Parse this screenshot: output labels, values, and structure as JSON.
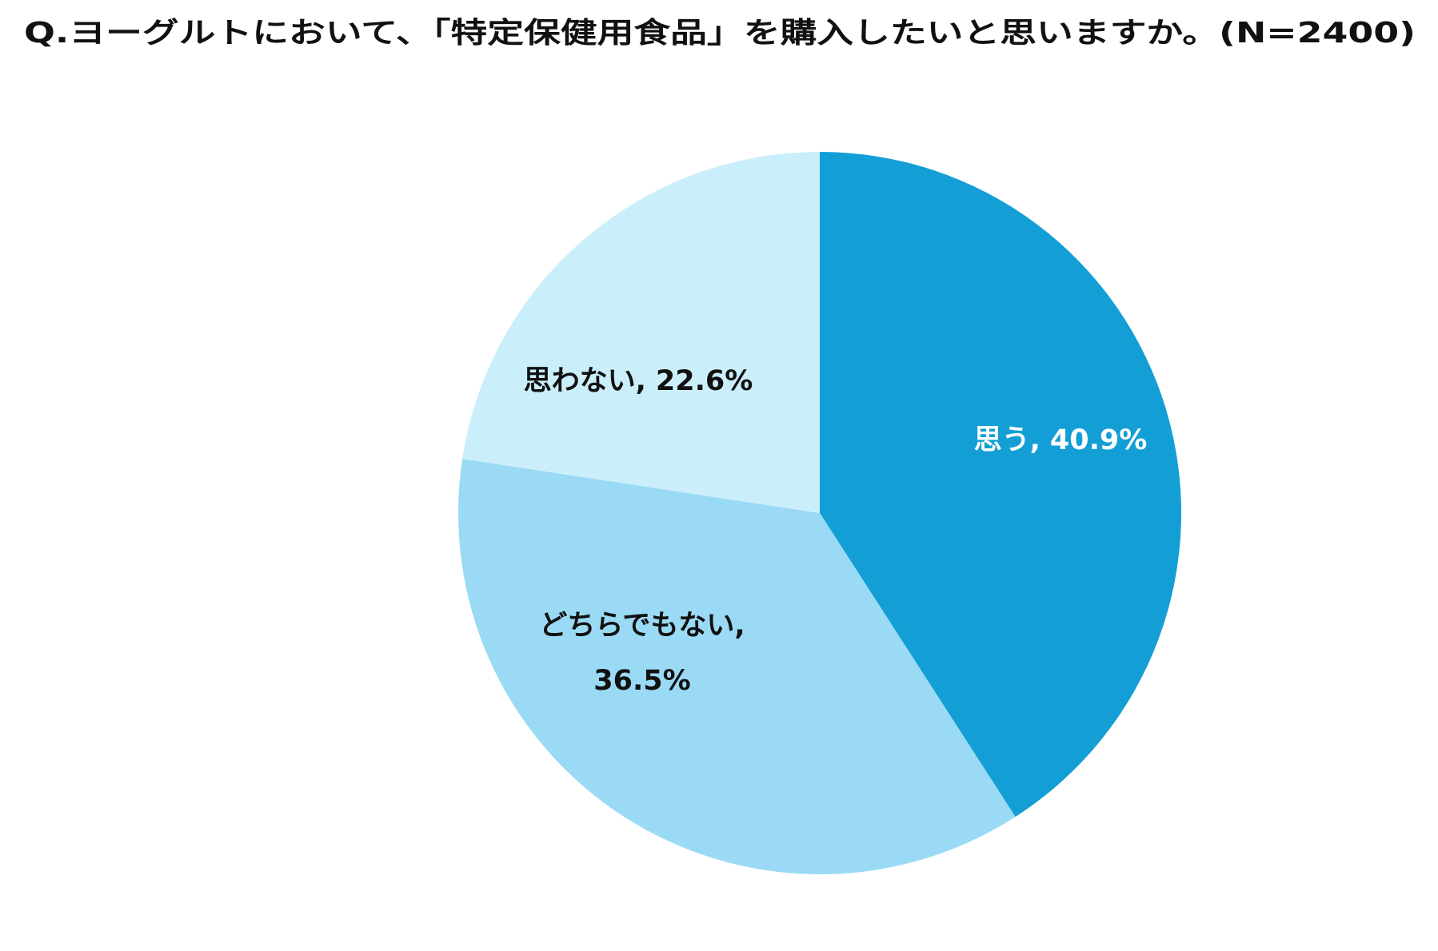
{
  "chart_data": {
    "type": "pie",
    "title": "Q.ヨーグルトにおいて、「特定保健用食品」を購入したいと思いますか。(N=2400)",
    "categories": [
      "思う,",
      "どちらでもない,",
      "思わない,"
    ],
    "values": [
      40.9,
      36.5,
      22.6
    ],
    "value_labels": [
      "40.9%",
      "36.5%",
      "22.6%"
    ],
    "colors": [
      "#139fd6",
      "#9adaf5",
      "#cbeefb"
    ],
    "label_colors": [
      "#ffffff",
      "#111111",
      "#111111"
    ]
  }
}
